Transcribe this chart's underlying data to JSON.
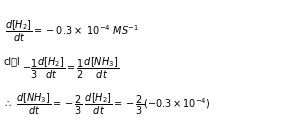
{
  "bg_color": "#ffffff",
  "text_color": "#000000",
  "line1": "$\\dfrac{d[H_2]}{dt} = -0.3 \\times \\ 10^{-4}\\ MS^{-1}$",
  "line2_prefix": "cl॒l",
  "line2_math": "$-\\dfrac{1}{3}\\dfrac{d[H_2]}{dt} = \\dfrac{1}{2}\\dfrac{d[NH_3]}{dt}$",
  "line3": "$\\therefore\\ \\dfrac{d[NH_3]}{dt} = -\\dfrac{2}{3}\\ \\dfrac{d[H_2]}{dt} = -\\dfrac{2}{3}\\left(-0.3\\times 10^{-4}\\right)$",
  "fontsize": 7.0,
  "figsize": [
    2.99,
    1.34
  ],
  "dpi": 100
}
